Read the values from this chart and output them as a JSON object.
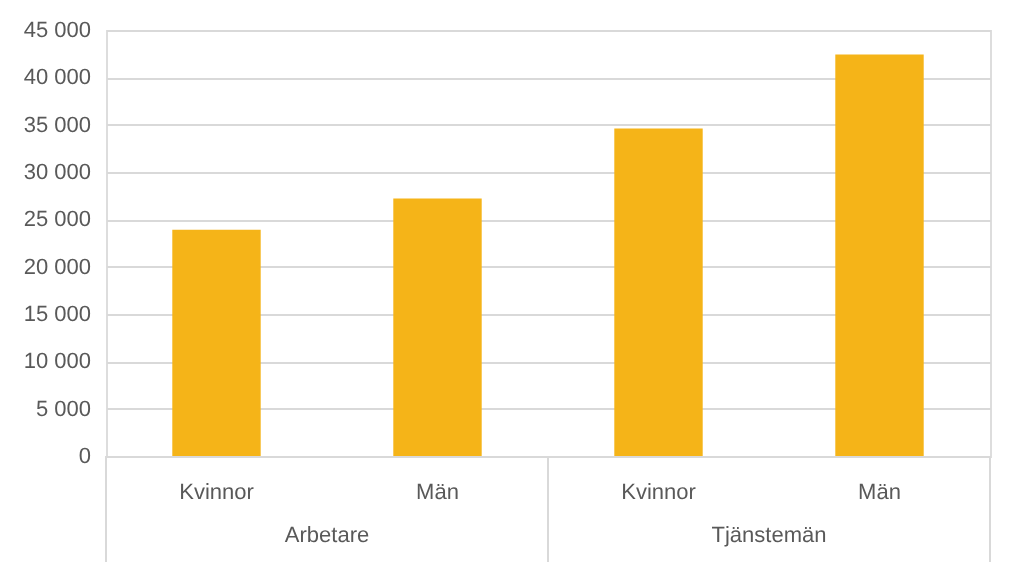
{
  "chart_data": {
    "type": "bar",
    "categories": [
      "Kvinnor",
      "Män",
      "Kvinnor",
      "Män"
    ],
    "values": [
      23900,
      27200,
      34600,
      42400
    ],
    "color": "#f5b418",
    "ylim": [
      0,
      45000
    ],
    "yticks": [
      0,
      {
        "value": 5000,
        "label": "5 000"
      },
      {
        "value": 10000,
        "label": "10 000"
      },
      {
        "value": 15000,
        "label": "15 000"
      },
      {
        "value": 20000,
        "label": "20 000"
      },
      {
        "value": 25000,
        "label": "25 000"
      },
      {
        "value": 30000,
        "label": "30 000"
      },
      {
        "value": 35000,
        "label": "35 000"
      },
      {
        "value": 40000,
        "label": "40 000"
      },
      {
        "value": 45000,
        "label": "45 000"
      }
    ],
    "annotations": [
      "Arbetare",
      "Tjänstemän"
    ],
    "grid": "y"
  }
}
